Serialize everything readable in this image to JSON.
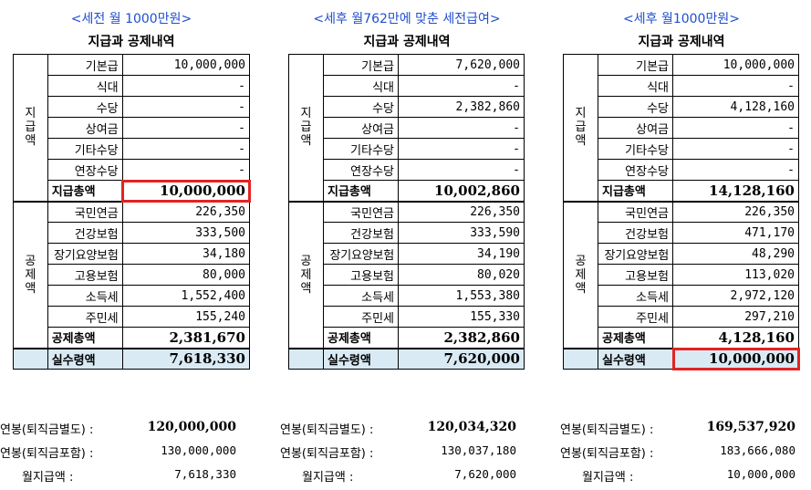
{
  "panels": [
    {
      "title": "<세전 월 1000만원>",
      "subtitle": "지급과 공제내역",
      "pay_label": [
        "지",
        "급",
        "액"
      ],
      "deduct_label": [
        "공",
        "제",
        "액"
      ],
      "pay_rows": [
        {
          "label": "기본급",
          "value": "10,000,000"
        },
        {
          "label": "식대",
          "value": "-"
        },
        {
          "label": "수당",
          "value": "-"
        },
        {
          "label": "상여금",
          "value": "-"
        },
        {
          "label": "기타수당",
          "value": "-"
        },
        {
          "label": "연장수당",
          "value": "-"
        }
      ],
      "pay_total": {
        "label": "지급총액",
        "value": "10,000,000"
      },
      "deduct_rows": [
        {
          "label": "국민연금",
          "value": "226,350"
        },
        {
          "label": "건강보험",
          "value": "333,500"
        },
        {
          "label": "장기요양보험",
          "value": "34,180"
        },
        {
          "label": "고용보험",
          "value": "80,000"
        },
        {
          "label": "소득세",
          "value": "1,552,400"
        },
        {
          "label": "주민세",
          "value": "155,240"
        }
      ],
      "deduct_total": {
        "label": "공제총액",
        "value": "2,381,670"
      },
      "net": {
        "label": "실수령액",
        "value": "7,618,330"
      },
      "summary": [
        {
          "label": "연봉(퇴직금별도) :",
          "value": "120,000,000"
        },
        {
          "label": "연봉(퇴직금포함) :",
          "value": "130,000,000"
        },
        {
          "label": "월지급액 :",
          "value": "7,618,330"
        }
      ]
    },
    {
      "title": "<세후 월762만에 맞춘 세전급여>",
      "subtitle": "지급과 공제내역",
      "pay_label": [
        "지",
        "급",
        "액"
      ],
      "deduct_label": [
        "공",
        "제",
        "액"
      ],
      "pay_rows": [
        {
          "label": "기본급",
          "value": "7,620,000"
        },
        {
          "label": "식대",
          "value": "-"
        },
        {
          "label": "수당",
          "value": "2,382,860"
        },
        {
          "label": "상여금",
          "value": "-"
        },
        {
          "label": "기타수당",
          "value": "-"
        },
        {
          "label": "연장수당",
          "value": "-"
        }
      ],
      "pay_total": {
        "label": "지급총액",
        "value": "10,002,860"
      },
      "deduct_rows": [
        {
          "label": "국민연금",
          "value": "226,350"
        },
        {
          "label": "건강보험",
          "value": "333,590"
        },
        {
          "label": "장기요양보험",
          "value": "34,190"
        },
        {
          "label": "고용보험",
          "value": "80,020"
        },
        {
          "label": "소득세",
          "value": "1,553,380"
        },
        {
          "label": "주민세",
          "value": "155,330"
        }
      ],
      "deduct_total": {
        "label": "공제총액",
        "value": "2,382,860"
      },
      "net": {
        "label": "실수령액",
        "value": "7,620,000"
      },
      "summary": [
        {
          "label": "연봉(퇴직금별도) :",
          "value": "120,034,320"
        },
        {
          "label": "연봉(퇴직금포함) :",
          "value": "130,037,180"
        },
        {
          "label": "월지급액 :",
          "value": "7,620,000"
        }
      ]
    },
    {
      "title": "<세후 월1000만원>",
      "subtitle": "지급과 공제내역",
      "pay_label": [
        "지",
        "급",
        "액"
      ],
      "deduct_label": [
        "공",
        "제",
        "액"
      ],
      "pay_rows": [
        {
          "label": "기본급",
          "value": "10,000,000"
        },
        {
          "label": "식대",
          "value": "-"
        },
        {
          "label": "수당",
          "value": "4,128,160"
        },
        {
          "label": "상여금",
          "value": "-"
        },
        {
          "label": "기타수당",
          "value": "-"
        },
        {
          "label": "연장수당",
          "value": "-"
        }
      ],
      "pay_total": {
        "label": "지급총액",
        "value": "14,128,160"
      },
      "deduct_rows": [
        {
          "label": "국민연금",
          "value": "226,350"
        },
        {
          "label": "건강보험",
          "value": "471,170"
        },
        {
          "label": "장기요양보험",
          "value": "48,290"
        },
        {
          "label": "고용보험",
          "value": "113,020"
        },
        {
          "label": "소득세",
          "value": "2,972,120"
        },
        {
          "label": "주민세",
          "value": "297,210"
        }
      ],
      "deduct_total": {
        "label": "공제총액",
        "value": "4,128,160"
      },
      "net": {
        "label": "실수령액",
        "value": "10,000,000"
      },
      "summary": [
        {
          "label": "연봉(퇴직금별도) :",
          "value": "169,537,920"
        },
        {
          "label": "연봉(퇴직금포함) :",
          "value": "183,666,080"
        },
        {
          "label": "월지급액 :",
          "value": "10,000,000"
        }
      ]
    }
  ],
  "highlight_color": "#e32323",
  "net_row_color": "#d9eaf4",
  "title_color": "#1f4fd0"
}
